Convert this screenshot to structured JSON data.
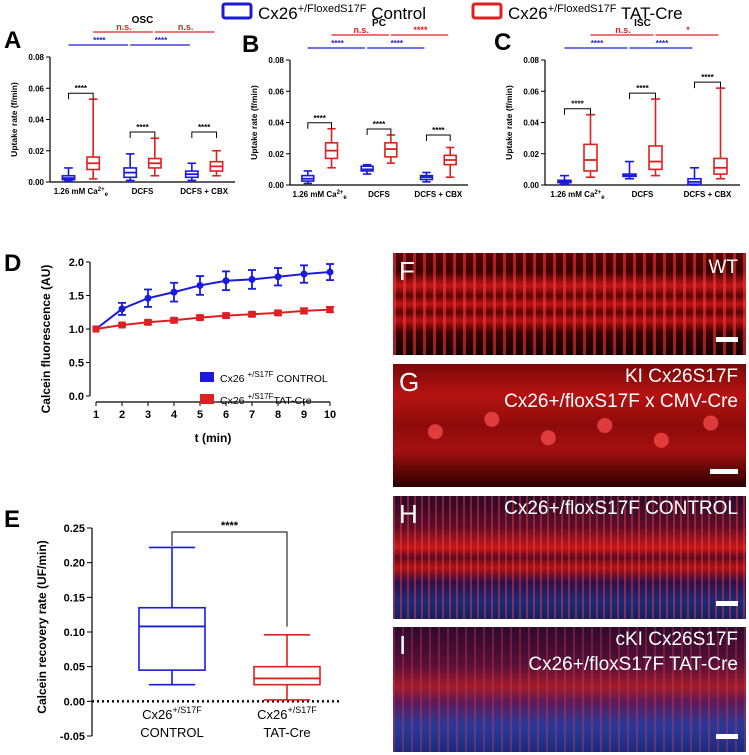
{
  "legend_top": {
    "control": {
      "prefix": "Cx26",
      "sup": "+/FloxedS17F",
      "suffix": " Control",
      "color": "#1a1adb"
    },
    "cre": {
      "prefix": "Cx26",
      "sup": "+/FloxedS17F",
      "suffix": " TAT-Cre",
      "color": "#e02020"
    }
  },
  "colors": {
    "control": "#1a1adb",
    "cre": "#e02020"
  },
  "chart_data": [
    {
      "id": "A",
      "type": "box",
      "letter": "A",
      "title": "OSC",
      "ylabel": "Uptake rate (f/min)",
      "ylim": [
        0,
        0.08
      ],
      "yticks": [
        "0.00",
        "0.02",
        "0.04",
        "0.06",
        "0.08"
      ],
      "categories": [
        "1.26 mM Ca2+e",
        "DCFS",
        "DCFS + CBX"
      ],
      "series": [
        {
          "name": "Control",
          "boxes": [
            [
              0.0005,
              0.0015,
              0.0025,
              0.004,
              0.009
            ],
            [
              0.001,
              0.003,
              0.006,
              0.009,
              0.018
            ],
            [
              0.001,
              0.003,
              0.005,
              0.007,
              0.012
            ]
          ]
        },
        {
          "name": "TAT-Cre",
          "boxes": [
            [
              0.002,
              0.008,
              0.012,
              0.016,
              0.053
            ],
            [
              0.004,
              0.009,
              0.012,
              0.015,
              0.028
            ],
            [
              0.004,
              0.007,
              0.01,
              0.013,
              0.02
            ]
          ]
        }
      ],
      "within_sig": [
        "****",
        "****",
        "****"
      ],
      "between_sig": {
        "control": [
          "****",
          "****"
        ],
        "cre": [
          "n.s.",
          "n.s."
        ]
      }
    },
    {
      "id": "B",
      "type": "box",
      "letter": "B",
      "title": "PC",
      "ylabel": "Uptake rate (f/min)",
      "ylim": [
        0,
        0.08
      ],
      "yticks": [
        "0.00",
        "0.02",
        "0.04",
        "0.06",
        "0.08"
      ],
      "categories": [
        "1.26 mM Ca2+e",
        "DCFS",
        "DCFS + CBX"
      ],
      "series": [
        {
          "name": "Control",
          "boxes": [
            [
              0.001,
              0.0025,
              0.004,
              0.006,
              0.009
            ],
            [
              0.007,
              0.009,
              0.01,
              0.012,
              0.013
            ],
            [
              0.002,
              0.0035,
              0.005,
              0.006,
              0.008
            ]
          ]
        },
        {
          "name": "TAT-Cre",
          "boxes": [
            [
              0.011,
              0.017,
              0.022,
              0.027,
              0.036
            ],
            [
              0.014,
              0.018,
              0.023,
              0.027,
              0.032
            ],
            [
              0.005,
              0.013,
              0.016,
              0.019,
              0.024
            ]
          ]
        }
      ],
      "within_sig": [
        "****",
        "****",
        "****"
      ],
      "between_sig": {
        "control": [
          "****",
          "****"
        ],
        "cre": [
          "n.s.",
          "****"
        ]
      }
    },
    {
      "id": "C",
      "type": "box",
      "letter": "C",
      "title": "ISC",
      "ylabel": "Uptake rate (f/min)",
      "ylim": [
        0,
        0.08
      ],
      "yticks": [
        "0.00",
        "0.02",
        "0.04",
        "0.06",
        "0.08"
      ],
      "categories": [
        "1.26 mM Ca2+e",
        "DCFS",
        "DCFS + CBX"
      ],
      "series": [
        {
          "name": "Control",
          "boxes": [
            [
              0.0005,
              0.0015,
              0.002,
              0.003,
              0.006
            ],
            [
              0.004,
              0.0055,
              0.006,
              0.007,
              0.015
            ],
            [
              0.0,
              0.0005,
              0.002,
              0.004,
              0.011
            ]
          ]
        },
        {
          "name": "TAT-Cre",
          "boxes": [
            [
              0.005,
              0.009,
              0.016,
              0.026,
              0.045
            ],
            [
              0.006,
              0.01,
              0.015,
              0.025,
              0.055
            ],
            [
              0.004,
              0.007,
              0.011,
              0.017,
              0.062
            ]
          ]
        }
      ],
      "within_sig": [
        "****",
        "****",
        "****"
      ],
      "between_sig": {
        "control": [
          "****",
          "****"
        ],
        "cre": [
          "n.s.",
          "*"
        ]
      }
    },
    {
      "id": "D",
      "type": "line",
      "letter": "D",
      "ylabel": "Calcein fluorescence (AU)",
      "xlabel": "t (min)",
      "x": [
        1,
        2,
        3,
        4,
        5,
        6,
        7,
        8,
        9,
        10
      ],
      "xlim": [
        1,
        10
      ],
      "ylim": [
        0.0,
        2.0
      ],
      "yticks": [
        "0.0",
        "0.5",
        "1.0",
        "1.5",
        "2.0"
      ],
      "series": [
        {
          "name": "Control",
          "values": [
            1.0,
            1.3,
            1.46,
            1.55,
            1.65,
            1.72,
            1.74,
            1.78,
            1.82,
            1.85
          ],
          "err": [
            0.0,
            0.09,
            0.13,
            0.14,
            0.14,
            0.14,
            0.14,
            0.13,
            0.13,
            0.12
          ]
        },
        {
          "name": "TAT-Cre",
          "values": [
            1.0,
            1.06,
            1.1,
            1.13,
            1.17,
            1.2,
            1.22,
            1.24,
            1.27,
            1.29
          ],
          "err": [
            0.0,
            0.02,
            0.03,
            0.03,
            0.03,
            0.03,
            0.03,
            0.03,
            0.04,
            0.04
          ]
        }
      ],
      "legend": [
        {
          "prefix": "Cx26 ",
          "sup": "+/S17F",
          "suffix": " CONTROL"
        },
        {
          "prefix": "Cx26 ",
          "sup": "+/S17F",
          "suffix": "TAT-Cre"
        }
      ]
    },
    {
      "id": "E",
      "type": "box",
      "letter": "E",
      "ylabel": "Calcein recovery rate (UF/min)",
      "ylim": [
        -0.05,
        0.25
      ],
      "yticks": [
        "-0.05",
        "0.00",
        "0.05",
        "0.10",
        "0.15",
        "0.20",
        "0.25"
      ],
      "categories": [
        {
          "prefix": "Cx26",
          "sup": "+/S17F",
          "line2": "CONTROL"
        },
        {
          "prefix": "Cx26",
          "sup": "+/S17F",
          "line2": "TAT-Cre"
        }
      ],
      "boxes": [
        [
          0.024,
          0.045,
          0.108,
          0.135,
          0.222
        ],
        [
          0.002,
          0.024,
          0.033,
          0.05,
          0.096
        ]
      ],
      "sig": "****"
    }
  ],
  "micrographs": [
    {
      "letter": "F",
      "lines": [
        "WT"
      ]
    },
    {
      "letter": "G",
      "lines": [
        "KI Cx26S17F",
        "Cx26+/floxS17F x CMV-Cre"
      ]
    },
    {
      "letter": "H",
      "lines": [
        "Cx26+/floxS17F CONTROL"
      ]
    },
    {
      "letter": "I",
      "lines": [
        "cKI Cx26S17F",
        "Cx26+/floxS17F TAT-Cre"
      ]
    }
  ]
}
